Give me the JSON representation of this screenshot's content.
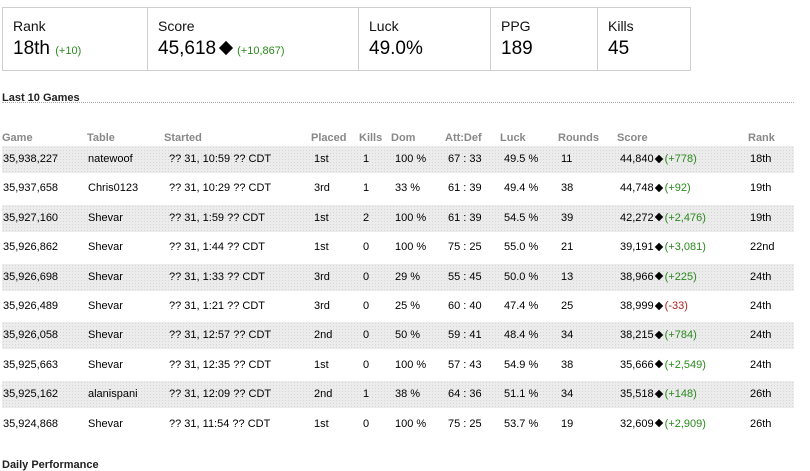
{
  "stats": {
    "rank": {
      "label": "Rank",
      "value": "18th",
      "delta": "(+10)"
    },
    "score": {
      "label": "Score",
      "value": "45,618",
      "delta": "(+10,867)"
    },
    "luck": {
      "label": "Luck",
      "value": "49.0%"
    },
    "ppg": {
      "label": "PPG",
      "value": "189"
    },
    "kills": {
      "label": "Kills",
      "value": "45"
    }
  },
  "section_title": "Last 10 Games",
  "next_section_title": "Daily Performance",
  "columns": [
    "Game",
    "Table",
    "Started",
    "Placed",
    "Kills",
    "Dom",
    "Att:Def",
    "Luck",
    "Rounds",
    "Score",
    "Rank"
  ],
  "rows": [
    {
      "game": "35,938,227",
      "table": "natewoof",
      "started": "?? 31, 10:59 ?? CDT",
      "placed": "1st",
      "kills": "1",
      "dom": "100 %",
      "attdef": "67 : 33",
      "luck": "49.5 %",
      "rounds": "11",
      "score": "44,840",
      "delta": "(+778)",
      "delta_type": "pos",
      "rank": "18th"
    },
    {
      "game": "35,937,658",
      "table": "Chris0123",
      "started": "?? 31, 10:29 ?? CDT",
      "placed": "3rd",
      "kills": "1",
      "dom": "33 %",
      "attdef": "61 : 39",
      "luck": "49.4 %",
      "rounds": "38",
      "score": "44,748",
      "delta": "(+92)",
      "delta_type": "pos",
      "rank": "19th"
    },
    {
      "game": "35,927,160",
      "table": "Shevar",
      "started": "?? 31, 1:59 ?? CDT",
      "placed": "1st",
      "kills": "2",
      "dom": "100 %",
      "attdef": "61 : 39",
      "luck": "54.5 %",
      "rounds": "39",
      "score": "42,272",
      "delta": "(+2,476)",
      "delta_type": "pos",
      "rank": "19th"
    },
    {
      "game": "35,926,862",
      "table": "Shevar",
      "started": "?? 31, 1:44 ?? CDT",
      "placed": "1st",
      "kills": "0",
      "dom": "100 %",
      "attdef": "75 : 25",
      "luck": "55.0 %",
      "rounds": "21",
      "score": "39,191",
      "delta": "(+3,081)",
      "delta_type": "pos",
      "rank": "22nd"
    },
    {
      "game": "35,926,698",
      "table": "Shevar",
      "started": "?? 31, 1:33 ?? CDT",
      "placed": "3rd",
      "kills": "0",
      "dom": "29 %",
      "attdef": "55 : 45",
      "luck": "50.0 %",
      "rounds": "13",
      "score": "38,966",
      "delta": "(+225)",
      "delta_type": "pos",
      "rank": "24th"
    },
    {
      "game": "35,926,489",
      "table": "Shevar",
      "started": "?? 31, 1:21 ?? CDT",
      "placed": "3rd",
      "kills": "0",
      "dom": "25 %",
      "attdef": "60 : 40",
      "luck": "47.4 %",
      "rounds": "25",
      "score": "38,999",
      "delta": "(-33)",
      "delta_type": "neg",
      "rank": "24th"
    },
    {
      "game": "35,926,058",
      "table": "Shevar",
      "started": "?? 31, 12:57 ?? CDT",
      "placed": "2nd",
      "kills": "0",
      "dom": "50 %",
      "attdef": "59 : 41",
      "luck": "48.4 %",
      "rounds": "34",
      "score": "38,215",
      "delta": "(+784)",
      "delta_type": "pos",
      "rank": "24th"
    },
    {
      "game": "35,925,663",
      "table": "Shevar",
      "started": "?? 31, 12:35 ?? CDT",
      "placed": "1st",
      "kills": "0",
      "dom": "100 %",
      "attdef": "57 : 43",
      "luck": "54.9 %",
      "rounds": "38",
      "score": "35,666",
      "delta": "(+2,549)",
      "delta_type": "pos",
      "rank": "24th"
    },
    {
      "game": "35,925,162",
      "table": "alanispani",
      "started": "?? 31, 12:09 ?? CDT",
      "placed": "2nd",
      "kills": "1",
      "dom": "38 %",
      "attdef": "64 : 36",
      "luck": "51.1 %",
      "rounds": "34",
      "score": "35,518",
      "delta": "(+148)",
      "delta_type": "pos",
      "rank": "26th"
    },
    {
      "game": "35,924,868",
      "table": "Shevar",
      "started": "?? 31, 11:54 ?? CDT",
      "placed": "1st",
      "kills": "0",
      "dom": "100 %",
      "attdef": "75 : 25",
      "luck": "53.7 %",
      "rounds": "19",
      "score": "32,609",
      "delta": "(+2,909)",
      "delta_type": "pos",
      "rank": "26th"
    }
  ],
  "colors": {
    "positive": "#2a8a1d",
    "negative": "#b02020",
    "header": "#888888"
  }
}
